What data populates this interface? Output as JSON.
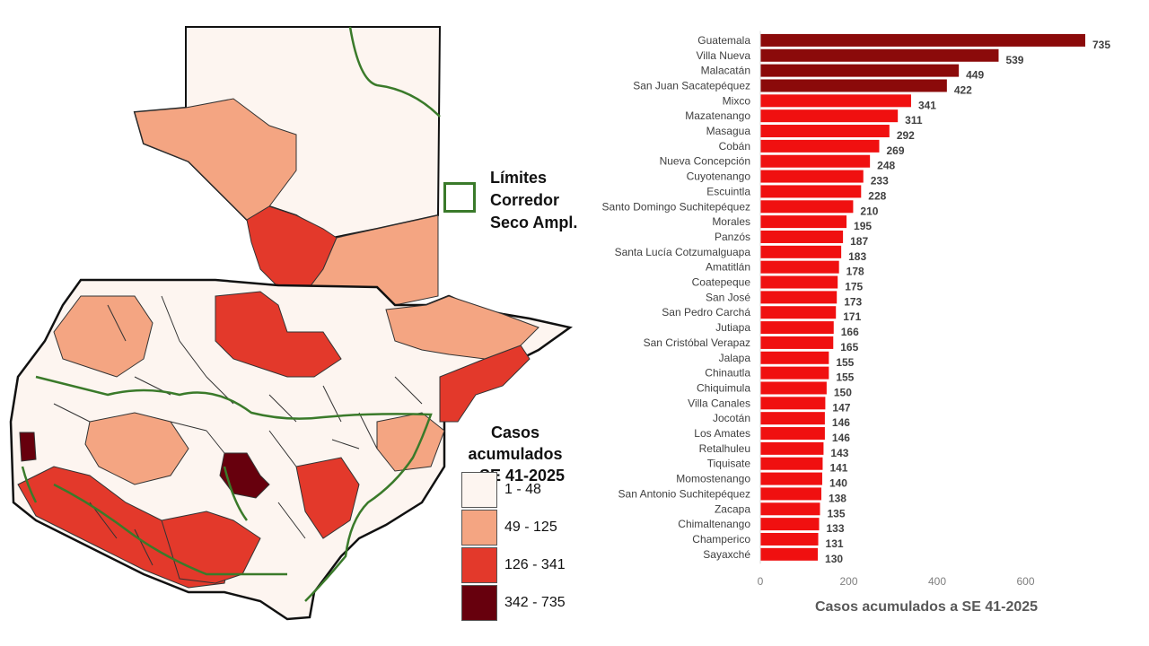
{
  "colors": {
    "bin1": "#fdf5f0",
    "bin2": "#f4a582",
    "bin3": "#e3392b",
    "bin4": "#67000d",
    "bar_top": "#8b0a0a",
    "bar_rest": "#f01010",
    "corridor": "#3a7a2a"
  },
  "map": {
    "corridor_legend": {
      "line1": "Límites",
      "line2": "Corredor",
      "line3": "Seco Ampl."
    },
    "cases_legend": {
      "title_line1": "Casos acumulados",
      "title_line2": "a SE 41-2025",
      "bins": [
        {
          "label": "1 - 48",
          "color": "#fdf5f0"
        },
        {
          "label": "49 - 125",
          "color": "#f4a582"
        },
        {
          "label": "126 - 341",
          "color": "#e3392b"
        },
        {
          "label": "342 - 735",
          "color": "#67000d"
        }
      ]
    }
  },
  "chart_data": {
    "type": "bar",
    "orientation": "horizontal",
    "title": "",
    "xlabel": "Casos acumulados a SE 41-2025",
    "ylabel": "",
    "xlim": [
      0,
      735
    ],
    "xticks": [
      0,
      200,
      400,
      600
    ],
    "categories": [
      "Guatemala",
      "Villa Nueva",
      "Malacatán",
      "San Juan Sacatepéquez",
      "Mixco",
      "Mazatenango",
      "Masagua",
      "Cobán",
      "Nueva Concepción",
      "Cuyotenango",
      "Escuintla",
      "Santo Domingo Suchitepéquez",
      "Morales",
      "Panzós",
      "Santa Lucía Cotzumalguapa",
      "Amatitlán",
      "Coatepeque",
      "San José",
      "San Pedro Carchá",
      "Jutiapa",
      "San Cristóbal Verapaz",
      "Jalapa",
      "Chinautla",
      "Chiquimula",
      "Villa Canales",
      "Jocotán",
      "Los Amates",
      "Retalhuleu",
      "Tiquisate",
      "Momostenango",
      "San Antonio Suchitepéquez",
      "Zacapa",
      "Chimaltenango",
      "Champerico",
      "Sayaxché"
    ],
    "values": [
      735,
      539,
      449,
      422,
      341,
      311,
      292,
      269,
      248,
      233,
      228,
      210,
      195,
      187,
      183,
      178,
      175,
      173,
      171,
      166,
      165,
      155,
      155,
      150,
      147,
      146,
      146,
      143,
      141,
      140,
      138,
      135,
      133,
      131,
      130
    ]
  }
}
